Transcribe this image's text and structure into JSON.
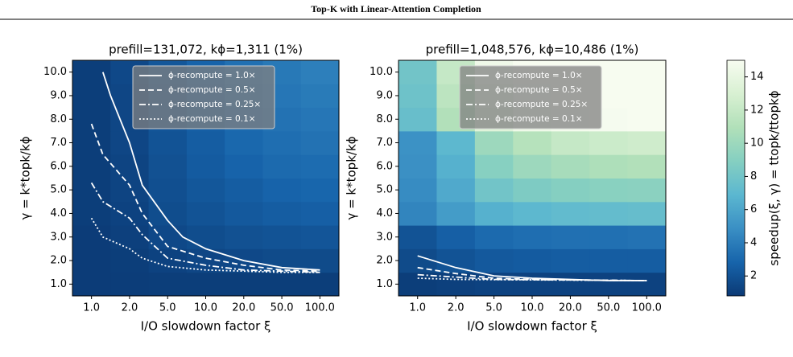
{
  "title": "Top-K with Linear-Attention Completion",
  "colorbar": {
    "label": "speedup(ξ, γ) = ttopk/ttopkϕ",
    "lim": [
      0.8,
      15
    ],
    "ticks": [
      2,
      4,
      6,
      8,
      10,
      12,
      14
    ],
    "colormap": [
      "#0b3a75",
      "#1764ab",
      "#3a8fc4",
      "#5bb7d0",
      "#85cfc1",
      "#b1e0b9",
      "#d8f0d2",
      "#f7fcf0"
    ]
  },
  "chart_data": [
    {
      "type": "heatmap",
      "title": "prefill=131,072, kϕ=1,311 (1%)",
      "xlabel": "I/O slowdown factor ξ",
      "ylabel": "γ = k*topk/kϕ",
      "xticks": [
        {
          "value": 1,
          "label": "1.0"
        },
        {
          "value": 2,
          "label": "2.0"
        },
        {
          "value": 5,
          "label": "5.0"
        },
        {
          "value": 10,
          "label": "10.0"
        },
        {
          "value": 20,
          "label": "20.0"
        },
        {
          "value": 50,
          "label": "50.0"
        },
        {
          "value": 100,
          "label": "100.0"
        }
      ],
      "yticks": [
        {
          "value": 1,
          "label": "1.0"
        },
        {
          "value": 2,
          "label": "2.0"
        },
        {
          "value": 3,
          "label": "3.0"
        },
        {
          "value": 4,
          "label": "4.0"
        },
        {
          "value": 5,
          "label": "5.0"
        },
        {
          "value": 6,
          "label": "6.0"
        },
        {
          "value": 7,
          "label": "7.0"
        },
        {
          "value": 8,
          "label": "8.0"
        },
        {
          "value": 9,
          "label": "9.0"
        },
        {
          "value": 10,
          "label": "10.0"
        }
      ],
      "ylim": [
        0.5,
        10.5
      ],
      "legend": "upper right",
      "z": [
        [
          0.9,
          0.95,
          1.0,
          1.0,
          1.0,
          1.0,
          1.0
        ],
        [
          0.9,
          1.0,
          1.2,
          1.4,
          1.5,
          1.6,
          1.6
        ],
        [
          0.9,
          1.1,
          1.5,
          1.7,
          1.9,
          2.0,
          2.1
        ],
        [
          1.0,
          1.2,
          1.7,
          2.0,
          2.3,
          2.5,
          2.6
        ],
        [
          1.0,
          1.3,
          1.8,
          2.2,
          2.5,
          2.8,
          2.9
        ],
        [
          1.0,
          1.3,
          1.9,
          2.4,
          2.8,
          3.1,
          3.2
        ],
        [
          1.0,
          1.4,
          2.0,
          2.5,
          3.0,
          3.3,
          3.5
        ],
        [
          1.0,
          1.4,
          2.1,
          2.6,
          3.1,
          3.5,
          3.7
        ],
        [
          1.0,
          1.4,
          2.1,
          2.7,
          3.2,
          3.7,
          3.9
        ],
        [
          1.0,
          1.5,
          2.2,
          2.8,
          3.4,
          3.8,
          4.1
        ]
      ],
      "series": [
        {
          "name": "ϕ-recompute = 1.0×",
          "color": "#ffffff",
          "dash": "solid",
          "x": [
            1.3,
            1.5,
            2,
            3,
            5,
            7,
            10,
            20,
            50,
            100
          ],
          "values": [
            10,
            9,
            7,
            5.2,
            3.7,
            3.0,
            2.5,
            2.0,
            1.7,
            1.6
          ]
        },
        {
          "name": "ϕ-recompute = 0.5×",
          "color": "#ffffff",
          "dash": "dashed",
          "x": [
            1,
            1.3,
            2,
            3,
            5,
            10,
            20,
            50,
            100
          ],
          "values": [
            7.8,
            6.5,
            5.2,
            4.0,
            2.6,
            2.1,
            1.8,
            1.6,
            1.55
          ]
        },
        {
          "name": "ϕ-recompute = 0.25×",
          "color": "#ffffff",
          "dash": "dashdot",
          "x": [
            1,
            1.3,
            2,
            3,
            5,
            10,
            20,
            50,
            100
          ],
          "values": [
            5.3,
            4.5,
            3.8,
            3.1,
            2.1,
            1.8,
            1.6,
            1.55,
            1.5
          ]
        },
        {
          "name": "ϕ-recompute = 0.1×",
          "color": "#ffffff",
          "dash": "dotted",
          "x": [
            1,
            1.3,
            2,
            3,
            5,
            10,
            20,
            50,
            100
          ],
          "values": [
            3.8,
            3.0,
            2.5,
            2.1,
            1.75,
            1.6,
            1.55,
            1.5,
            1.5
          ]
        }
      ]
    },
    {
      "type": "heatmap",
      "title": "prefill=1,048,576, kϕ=10,486 (1%)",
      "xlabel": "I/O slowdown factor ξ",
      "ylabel": "γ = k*topk/kϕ",
      "xticks": [
        {
          "value": 1,
          "label": "1.0"
        },
        {
          "value": 2,
          "label": "2.0"
        },
        {
          "value": 5,
          "label": "5.0"
        },
        {
          "value": 10,
          "label": "10.0"
        },
        {
          "value": 20,
          "label": "20.0"
        },
        {
          "value": 50,
          "label": "50.0"
        },
        {
          "value": 100,
          "label": "100.0"
        }
      ],
      "yticks": [
        {
          "value": 1,
          "label": "1.0"
        },
        {
          "value": 2,
          "label": "2.0"
        },
        {
          "value": 3,
          "label": "3.0"
        },
        {
          "value": 4,
          "label": "4.0"
        },
        {
          "value": 5,
          "label": "5.0"
        },
        {
          "value": 6,
          "label": "6.0"
        },
        {
          "value": 7,
          "label": "7.0"
        },
        {
          "value": 8,
          "label": "8.0"
        },
        {
          "value": 9,
          "label": "9.0"
        },
        {
          "value": 10,
          "label": "10.0"
        }
      ],
      "ylim": [
        0.5,
        10.5
      ],
      "legend": "upper right",
      "z": [
        [
          1.0,
          1.1,
          1.2,
          1.2,
          1.2,
          1.2,
          1.2
        ],
        [
          1.6,
          2.0,
          2.3,
          2.4,
          2.5,
          2.5,
          2.5
        ],
        [
          2.0,
          2.6,
          3.1,
          3.3,
          3.4,
          3.4,
          3.5
        ],
        [
          4.4,
          5.5,
          6.6,
          7.0,
          7.2,
          7.3,
          7.4
        ],
        [
          4.7,
          6.2,
          8.0,
          8.6,
          8.9,
          9.1,
          9.2
        ],
        [
          4.9,
          6.6,
          9.0,
          10.0,
          10.5,
          10.8,
          11.0
        ],
        [
          5.0,
          7.0,
          10.0,
          11.2,
          12.0,
          12.3,
          12.5
        ],
        [
          7.5,
          11.0,
          13.5,
          14.5,
          14.8,
          14.9,
          15.0
        ],
        [
          7.8,
          11.5,
          14.0,
          14.8,
          15.0,
          15.0,
          15.0
        ],
        [
          8.0,
          12.0,
          14.5,
          15.0,
          15.0,
          15.0,
          15.0
        ]
      ],
      "series": [
        {
          "name": "ϕ-recompute = 1.0×",
          "color": "#ffffff",
          "dash": "solid",
          "x": [
            1,
            2,
            5,
            10,
            20,
            50,
            100
          ],
          "values": [
            2.2,
            1.7,
            1.35,
            1.25,
            1.2,
            1.15,
            1.15
          ]
        },
        {
          "name": "ϕ-recompute = 0.5×",
          "color": "#ffffff",
          "dash": "dashed",
          "x": [
            1,
            2,
            5,
            10,
            100
          ],
          "values": [
            1.7,
            1.45,
            1.25,
            1.2,
            1.15
          ]
        },
        {
          "name": "ϕ-recompute = 0.25×",
          "color": "#ffffff",
          "dash": "dashdot",
          "x": [
            1,
            2,
            5,
            100
          ],
          "values": [
            1.4,
            1.3,
            1.2,
            1.15
          ]
        },
        {
          "name": "ϕ-recompute = 0.1×",
          "color": "#ffffff",
          "dash": "dotted",
          "x": [
            1,
            2,
            100
          ],
          "values": [
            1.25,
            1.2,
            1.15
          ]
        }
      ]
    }
  ]
}
